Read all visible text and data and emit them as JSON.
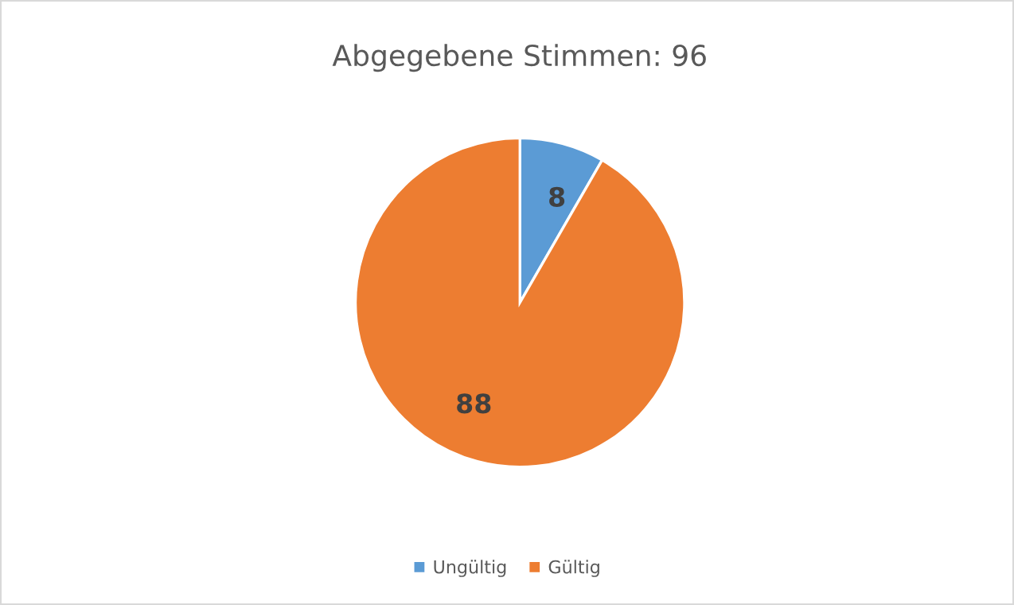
{
  "chart_data": {
    "type": "pie",
    "title": "Abgegebene Stimmen: 96",
    "categories": [
      "Ungültig",
      "Gültig"
    ],
    "values": [
      8,
      88
    ],
    "colors": [
      "#5b9bd5",
      "#ed7d31"
    ],
    "data_labels": true,
    "legend": "bottom"
  }
}
